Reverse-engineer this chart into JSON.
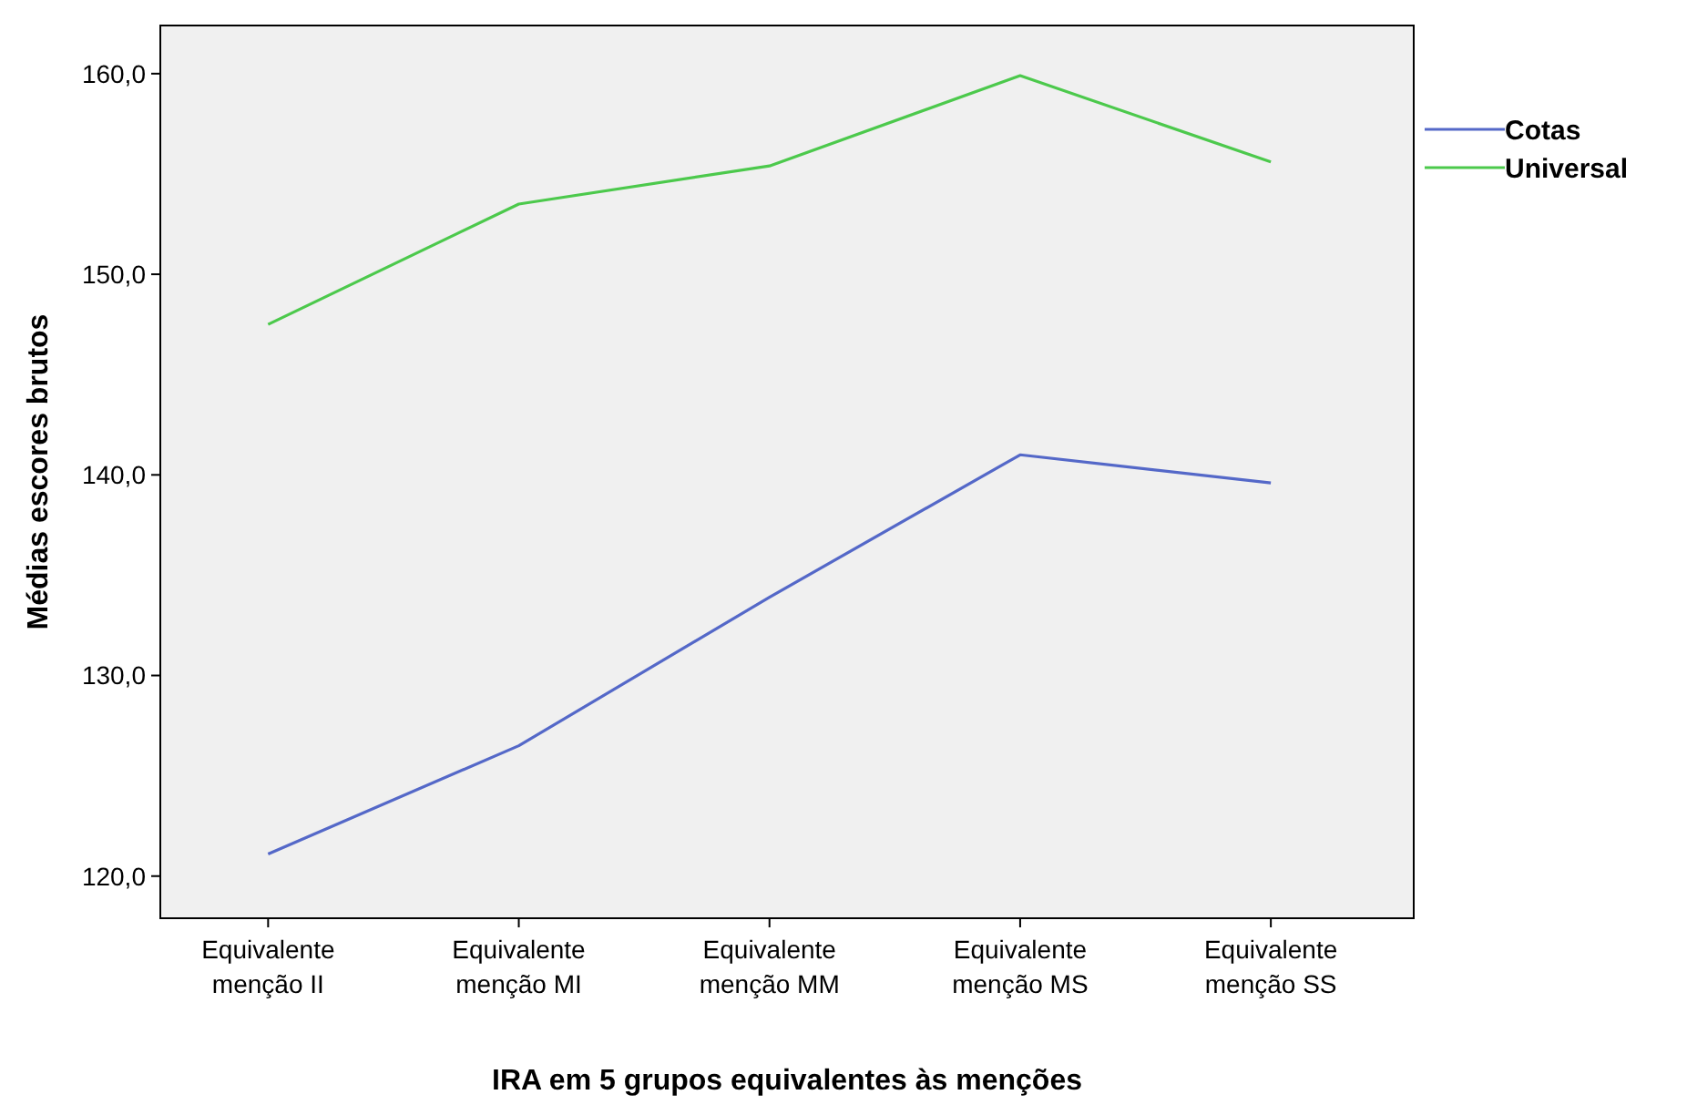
{
  "chart_data": {
    "type": "line",
    "xlabel": "IRA em 5 grupos equivalentes às menções",
    "ylabel": "Médias escores brutos",
    "categories": [
      "Equivalente menção II",
      "Equivalente menção MI",
      "Equivalente menção MM",
      "Equivalente menção MS",
      "Equivalente menção SS"
    ],
    "series": [
      {
        "name": "Cotas",
        "color": "#5468c8",
        "values": [
          121.1,
          126.5,
          133.9,
          141.0,
          139.6
        ]
      },
      {
        "name": "Universal",
        "color": "#4cc94c",
        "values": [
          147.5,
          153.5,
          155.4,
          159.9,
          155.6
        ]
      }
    ],
    "ylim": [
      117.9,
      162.4
    ],
    "yticks": [
      {
        "value": 120,
        "label": "120,0"
      },
      {
        "value": 130,
        "label": "130,0"
      },
      {
        "value": 140,
        "label": "140,0"
      },
      {
        "value": 150,
        "label": "150,0"
      },
      {
        "value": 160,
        "label": "160,0"
      }
    ],
    "legend": "right",
    "grid": false,
    "marker": "none",
    "line_style": "solid"
  }
}
